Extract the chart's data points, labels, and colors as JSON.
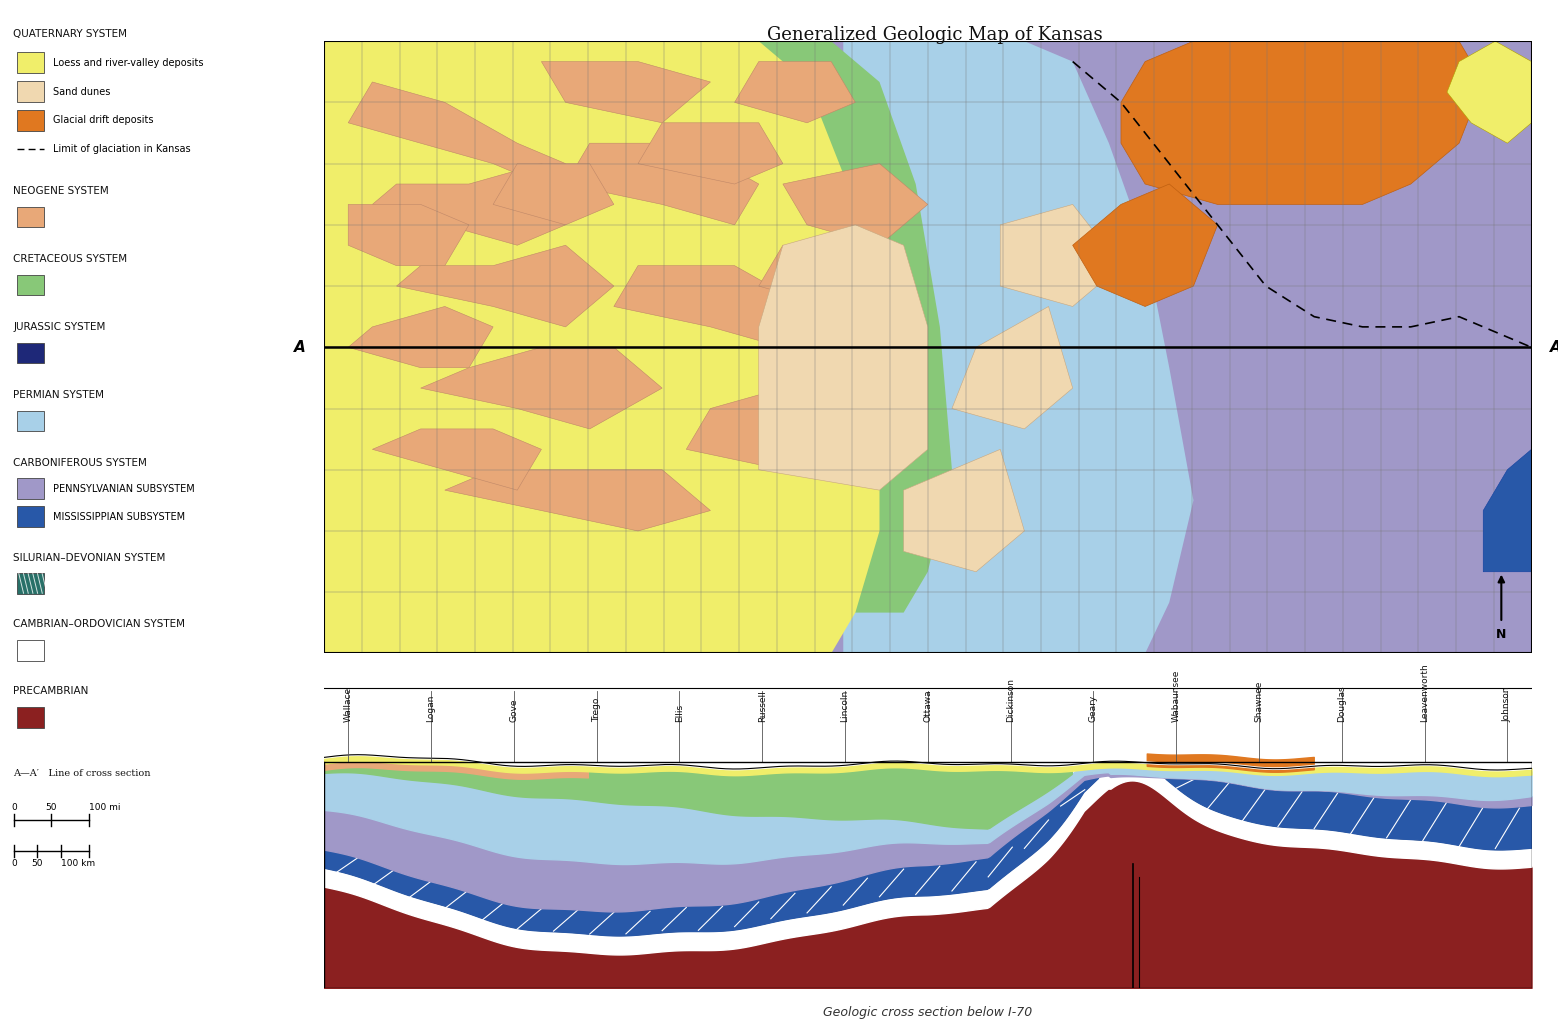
{
  "title": "Generalized Geologic Map of Kansas",
  "subtitle_cross": "Geologic cross section below I-70",
  "background_color": "#ffffff",
  "cross_counties": [
    "Wallace",
    "Logan",
    "Gove",
    "Trego",
    "Ellis",
    "Russell",
    "Lincoln",
    "Ottawa",
    "Dickinson",
    "Geary",
    "Wabaunsee",
    "Shawnee",
    "Douglas",
    "Leavenworth",
    "Johnson"
  ],
  "colors": {
    "yellow": "#f0ee6a",
    "sand": "#f0d8b0",
    "orange_glacial": "#e07820",
    "neogene": "#e8a878",
    "cretaceous": "#88c878",
    "jurassic": "#1e2878",
    "permian": "#a8d0e8",
    "pennsylvanian": "#a098c8",
    "mississippian": "#2858a8",
    "silurian_devonian": "#287068",
    "cambrian_ordovician": "#ffffff",
    "precambrian": "#8b2020",
    "map_border": "#404040",
    "grid": "#888888"
  }
}
